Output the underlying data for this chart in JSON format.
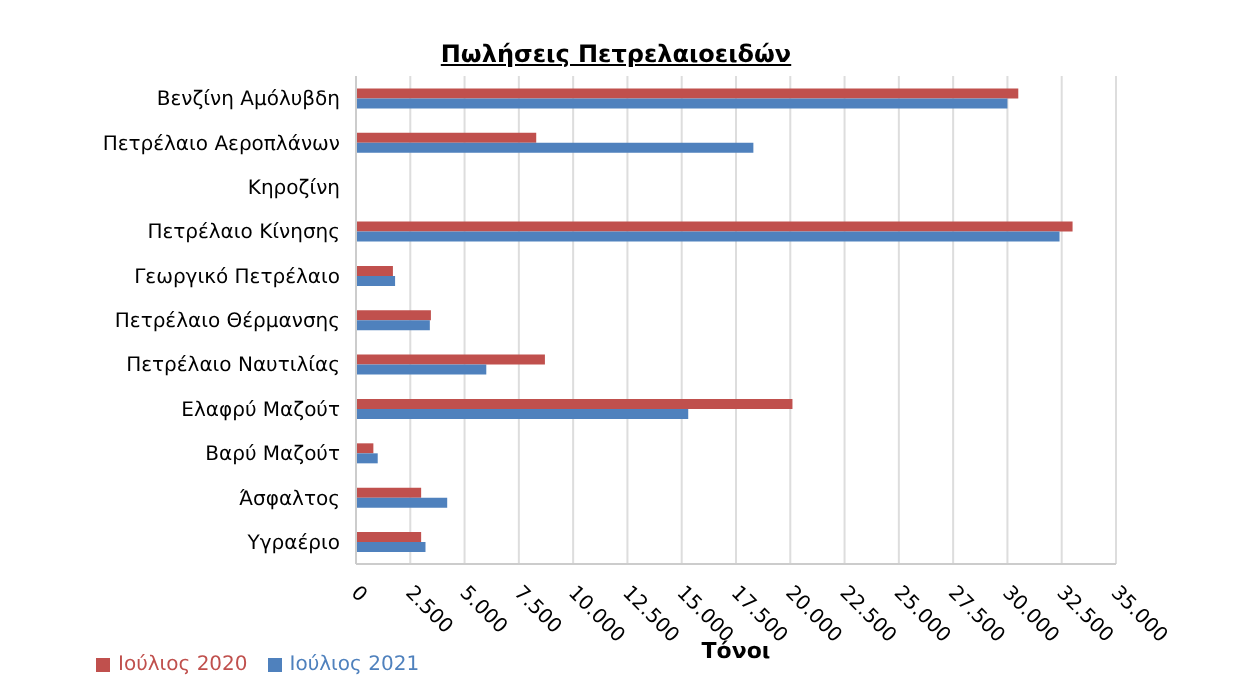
{
  "chart_data": {
    "type": "bar",
    "orientation": "horizontal",
    "title": "Πωλήσεις Πετρελαιοειδών",
    "xlabel": "Τόνοι",
    "categories": [
      "Βενζίνη Αμόλυβδη",
      "Πετρέλαιο Αεροπλάνων",
      "Κηροζίνη",
      "Πετρέλαιο Κίνησης",
      "Γεωργικό Πετρέλαιο",
      "Πετρέλαιο Θέρμανσης",
      "Πετρέλαιο Ναυτιλίας",
      "Ελαφρύ Μαζούτ",
      "Βαρύ Μαζούτ",
      "Άσφαλτος",
      "Υγραέριο"
    ],
    "series": [
      {
        "name": "Ιούλιος 2020",
        "color": "#c0504d",
        "values": [
          30500,
          8300,
          0,
          33000,
          1700,
          3450,
          8700,
          20100,
          800,
          3000,
          3000
        ]
      },
      {
        "name": "Ιούλιος 2021",
        "color": "#4f81bd",
        "values": [
          30000,
          18300,
          0,
          32400,
          1800,
          3400,
          6000,
          15300,
          1000,
          4200,
          3200
        ]
      }
    ],
    "xlim": [
      0,
      35000
    ],
    "xticks": [
      0,
      {
        "value": 2500,
        "label": "2.500"
      },
      {
        "value": 5000,
        "label": "5.000"
      },
      {
        "value": 7500,
        "label": "7.500"
      },
      {
        "value": 10000,
        "label": "10.000"
      },
      {
        "value": 12500,
        "label": "12.500"
      },
      {
        "value": 15000,
        "label": "15.000"
      },
      {
        "value": 17500,
        "label": "17.500"
      },
      {
        "value": 20000,
        "label": "20.000"
      },
      {
        "value": 22500,
        "label": "22.500"
      },
      {
        "value": 25000,
        "label": "25.000"
      },
      {
        "value": 27500,
        "label": "27.500"
      },
      {
        "value": 30000,
        "label": "30.000"
      },
      {
        "value": 32500,
        "label": "32.500"
      },
      {
        "value": 35000,
        "label": "35.000"
      }
    ],
    "grid": "x",
    "legend": "bottom left"
  }
}
